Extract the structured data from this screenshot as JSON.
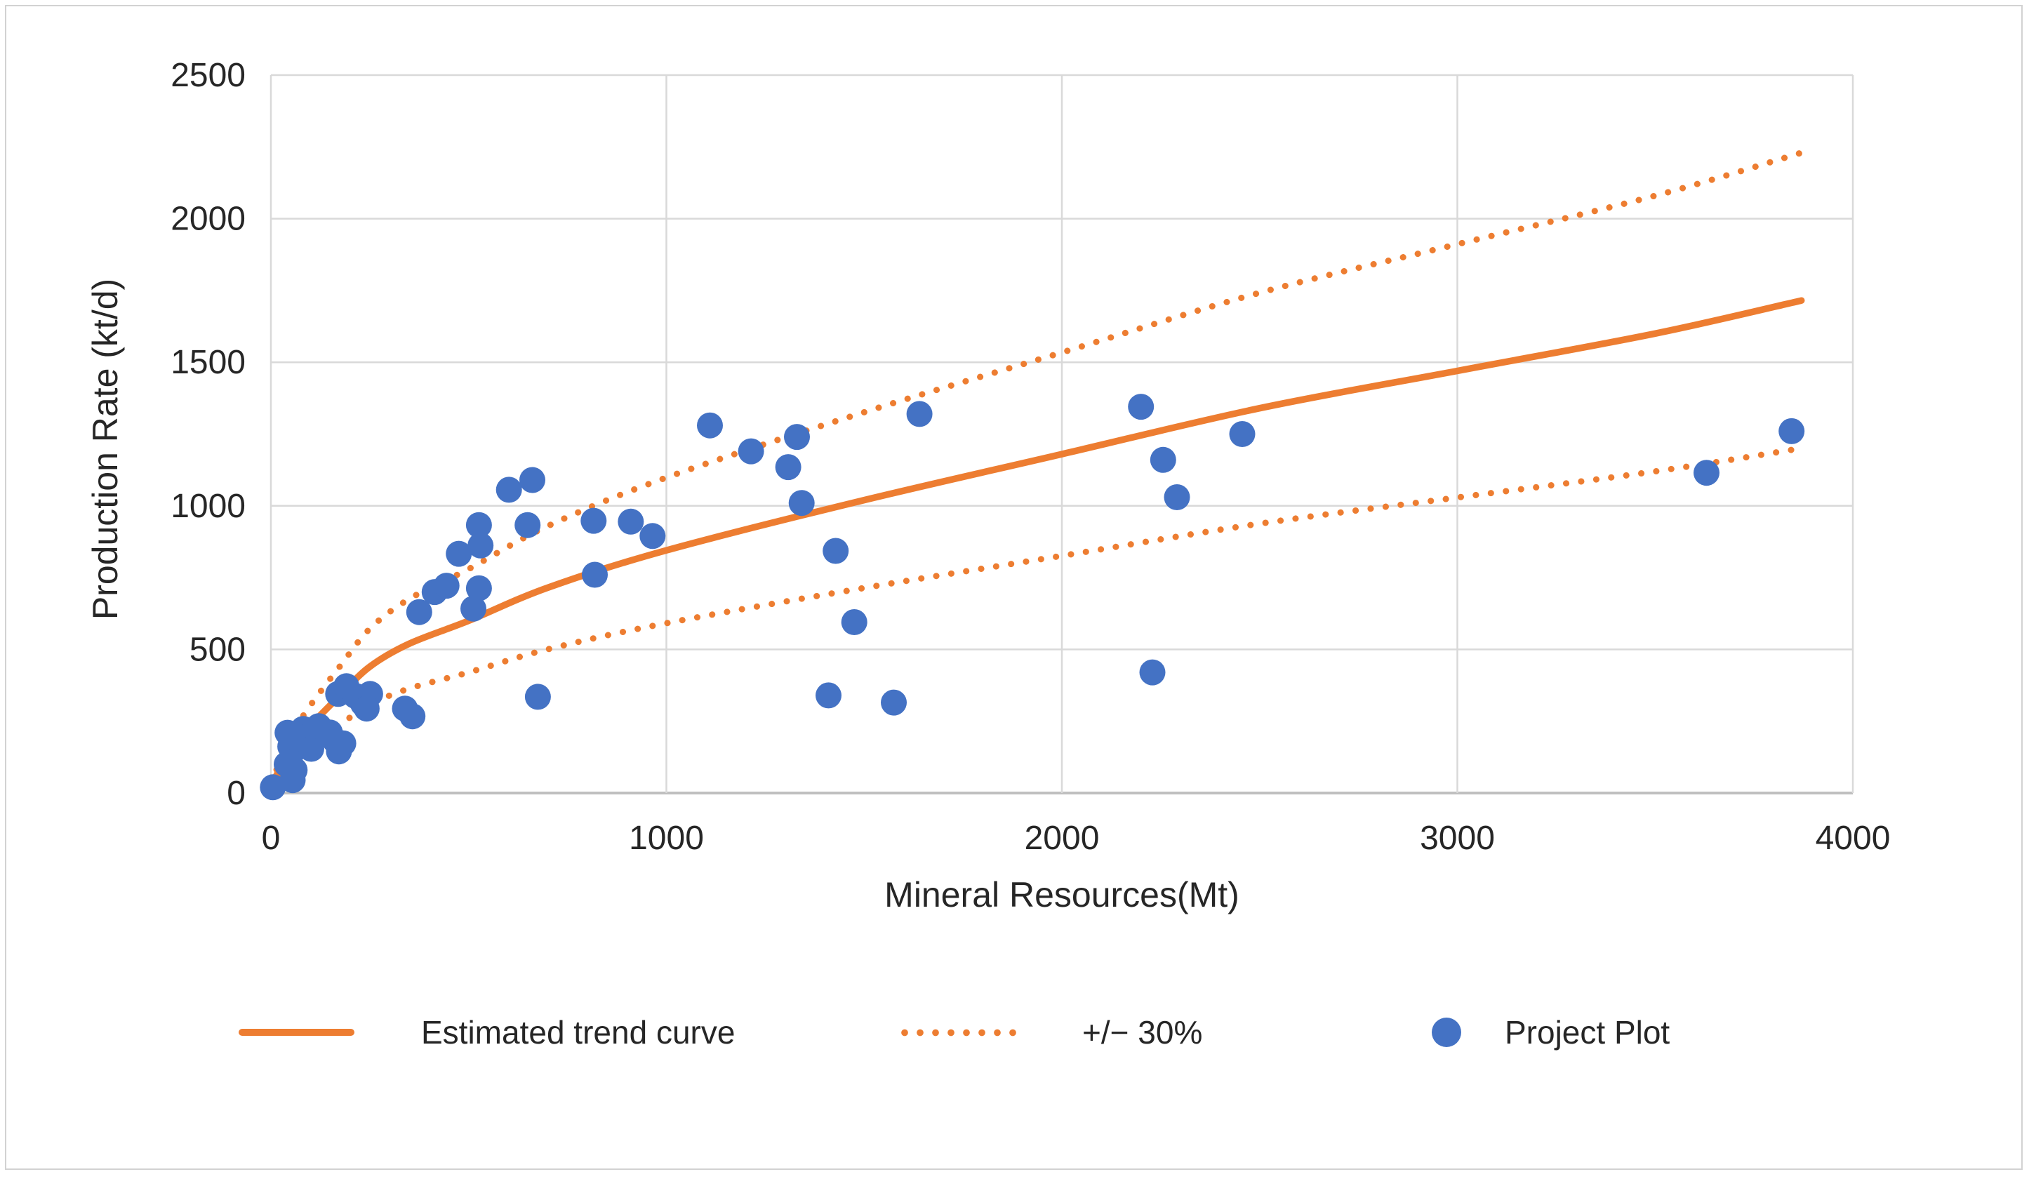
{
  "figure": {
    "background": "#ffffff",
    "border_color": "#d2d2d2"
  },
  "chart_data": {
    "type": "scatter",
    "title": "",
    "xlabel": "Mineral Resources(Mt)",
    "ylabel": "Production Rate (kt/d)",
    "xlim": [
      0,
      4000
    ],
    "ylim": [
      0,
      2500
    ],
    "x_ticks": [
      0,
      1000,
      2000,
      3000,
      4000
    ],
    "y_ticks": [
      0,
      500,
      1000,
      1500,
      2000,
      2500
    ],
    "grid": true,
    "legend_position": "bottom",
    "colors": {
      "trend": "#ED7D31",
      "band": "#ED7D31",
      "points": "#4472C4",
      "grid": "#D9D9D9",
      "axis": "#BFBFBF",
      "text": "#262626"
    },
    "series": [
      {
        "name": "Estimated trend curve",
        "type": "line",
        "points": [
          [
            0,
            25
          ],
          [
            50,
            150
          ],
          [
            100,
            235
          ],
          [
            175,
            340
          ],
          [
            250,
            440
          ],
          [
            350,
            520
          ],
          [
            500,
            600
          ],
          [
            700,
            715
          ],
          [
            1000,
            845
          ],
          [
            1500,
            1020
          ],
          [
            2000,
            1180
          ],
          [
            2500,
            1340
          ],
          [
            3000,
            1470
          ],
          [
            3500,
            1600
          ],
          [
            3870,
            1715
          ]
        ]
      },
      {
        "name": "+/− 30%",
        "type": "band",
        "factors": [
          1.3,
          0.7
        ]
      },
      {
        "name": "Project Plot",
        "type": "scatter",
        "points": [
          [
            5,
            20
          ],
          [
            55,
            45
          ],
          [
            60,
            80
          ],
          [
            55,
            145
          ],
          [
            40,
            100
          ],
          [
            42,
            210
          ],
          [
            49,
            162
          ],
          [
            63,
            190
          ],
          [
            82,
            223
          ],
          [
            95,
            198
          ],
          [
            102,
            154
          ],
          [
            121,
            233
          ],
          [
            149,
            211
          ],
          [
            163,
            181
          ],
          [
            172,
            145
          ],
          [
            183,
            173
          ],
          [
            170,
            345
          ],
          [
            191,
            372
          ],
          [
            214,
            338
          ],
          [
            233,
            311
          ],
          [
            251,
            345
          ],
          [
            242,
            294
          ],
          [
            339,
            294
          ],
          [
            358,
            267
          ],
          [
            375,
            630
          ],
          [
            414,
            700
          ],
          [
            444,
            722
          ],
          [
            526,
            713
          ],
          [
            512,
            642
          ],
          [
            475,
            833
          ],
          [
            526,
            933
          ],
          [
            530,
            862
          ],
          [
            602,
            1056
          ],
          [
            661,
            1090
          ],
          [
            649,
            933
          ],
          [
            675,
            335
          ],
          [
            816,
            948
          ],
          [
            819,
            760
          ],
          [
            910,
            945
          ],
          [
            965,
            895
          ],
          [
            1110,
            1280
          ],
          [
            1214,
            1190
          ],
          [
            1330,
            1240
          ],
          [
            1308,
            1135
          ],
          [
            1342,
            1010
          ],
          [
            1428,
            843
          ],
          [
            1475,
            595
          ],
          [
            1410,
            340
          ],
          [
            1575,
            315
          ],
          [
            1640,
            1320
          ],
          [
            2200,
            1345
          ],
          [
            2256,
            1160
          ],
          [
            2291,
            1030
          ],
          [
            2456,
            1250
          ],
          [
            2229,
            420
          ],
          [
            3630,
            1115
          ],
          [
            3845,
            1260
          ]
        ]
      }
    ]
  }
}
